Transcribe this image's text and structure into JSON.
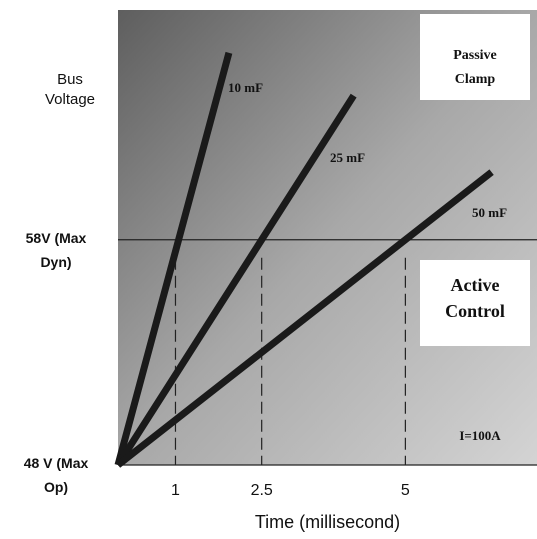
{
  "chart_data": {
    "type": "line",
    "y_label": "Bus Voltage",
    "x_label": "Time (millisecond)",
    "series": [
      {
        "name": "10 mF",
        "color": "#1a1a1a",
        "x": [
          0,
          1.93
        ],
        "values": [
          48,
          66.3
        ]
      },
      {
        "name": "25 mF",
        "color": "#1a1a1a",
        "x": [
          0,
          4.1
        ],
        "values": [
          48,
          64.4
        ]
      },
      {
        "name": "50 mF",
        "color": "#1a1a1a",
        "x": [
          0,
          6.5
        ],
        "values": [
          48,
          61
        ]
      }
    ],
    "xlim": [
      0,
      7.29
    ],
    "xticks": [
      1,
      2.5,
      5
    ],
    "ylim": [
      48,
      68.2
    ],
    "yticks": [
      {
        "value": 48,
        "label": "48 V (Max Op)"
      },
      {
        "value": 58,
        "label": "58V (Max Dyn)"
      }
    ],
    "annotations": [
      "Passive Clamp",
      "Active Control",
      "I=100A"
    ]
  }
}
